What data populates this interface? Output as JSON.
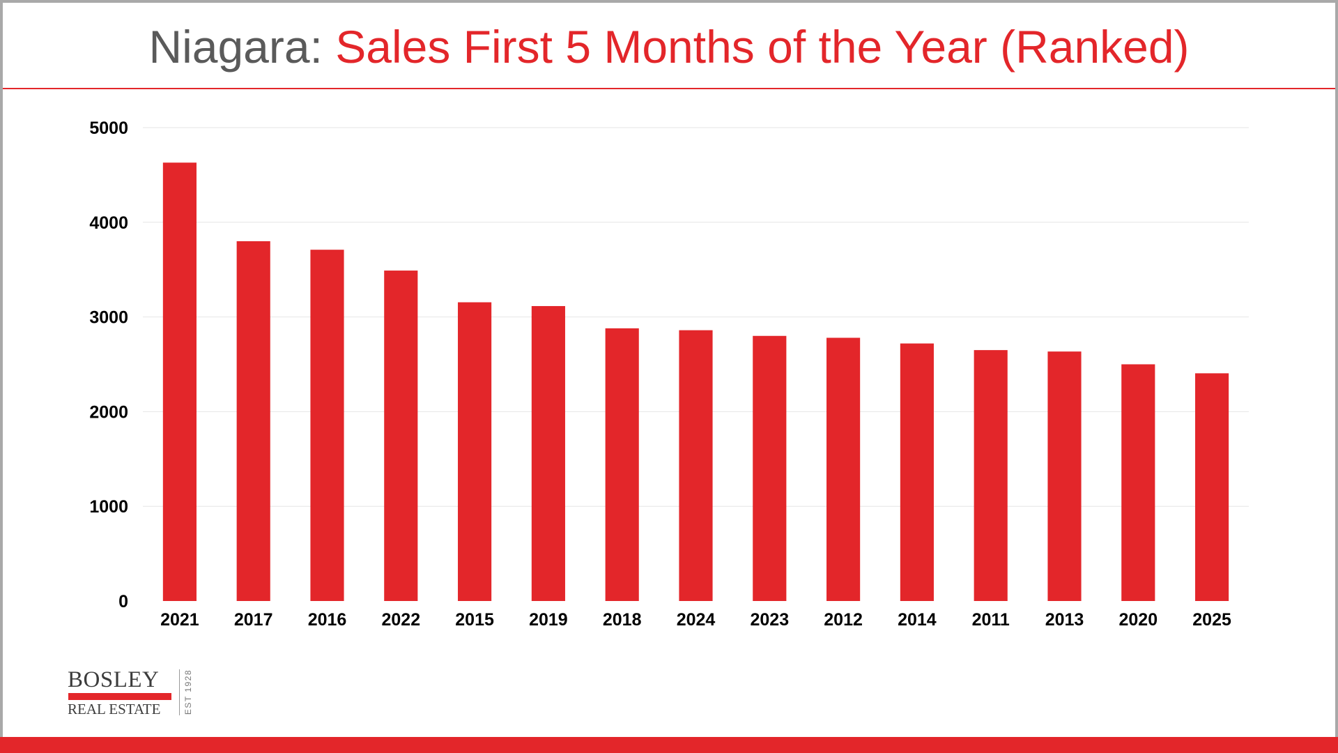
{
  "header": {
    "title_prefix": "Niagara: ",
    "title_main": "Sales First 5 Months of the Year (Ranked)"
  },
  "brand": {
    "name": "BOSLEY",
    "subtitle": "REAL ESTATE",
    "est": "EST 1928",
    "accent_color": "#e3262a"
  },
  "chart_data": {
    "type": "bar",
    "title": "Niagara: Sales First 5 Months of the Year (Ranked)",
    "xlabel": "",
    "ylabel": "",
    "categories": [
      "2021",
      "2017",
      "2016",
      "2022",
      "2015",
      "2019",
      "2018",
      "2024",
      "2023",
      "2012",
      "2014",
      "2011",
      "2013",
      "2020",
      "2025"
    ],
    "series": [
      {
        "values": [
          4630,
          3800,
          3710,
          3490,
          3155,
          3115,
          2880,
          2860,
          2800,
          2780,
          2720,
          2650,
          2635,
          2500,
          2405
        ],
        "color": "#e3262a"
      }
    ],
    "ylim": [
      0,
      5000
    ],
    "yticks": [
      0,
      1000,
      2000,
      3000,
      4000,
      5000
    ],
    "grid": true,
    "legend": "none"
  }
}
